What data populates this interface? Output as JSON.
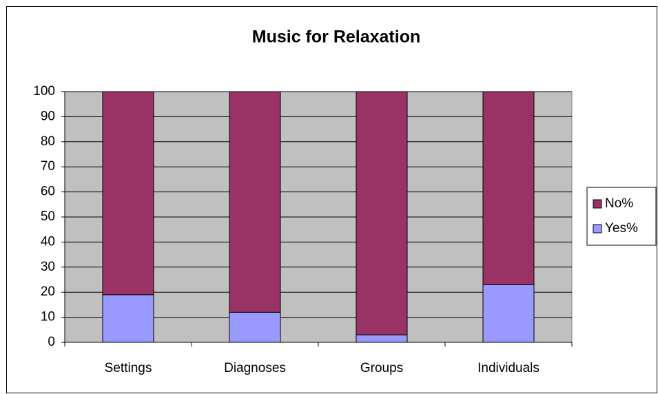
{
  "chart_data": {
    "type": "stacked_bar",
    "title": "Music for Relaxation",
    "categories": [
      "Settings",
      "Diagnoses",
      "Groups",
      "Individuals"
    ],
    "series": [
      {
        "name": "Yes%",
        "color": "#9999ff",
        "values": [
          19,
          12,
          3,
          23
        ]
      },
      {
        "name": "No%",
        "color": "#993366",
        "values": [
          81,
          88,
          97,
          77
        ]
      }
    ],
    "ylim": [
      0,
      100
    ],
    "yticks": [
      0,
      10,
      20,
      30,
      40,
      50,
      60,
      70,
      80,
      90,
      100
    ],
    "grid": true,
    "legend": "right"
  }
}
